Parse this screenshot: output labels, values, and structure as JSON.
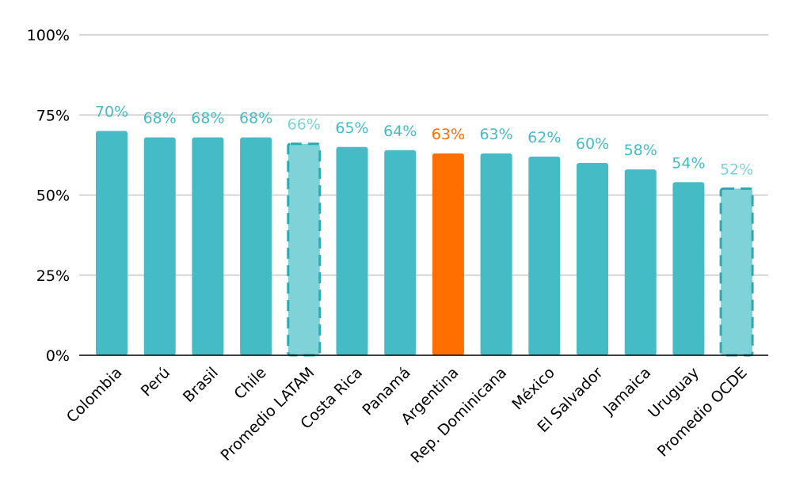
{
  "chart_data": {
    "type": "bar",
    "categories": [
      "Colombia",
      "Perú",
      "Brasil",
      "Chile",
      "Promedio LATAM",
      "Costa Rica",
      "Panamá",
      "Argentina",
      "Rep. Dominicana",
      "México",
      "El Salvador",
      "Jamaica",
      "Uruguay",
      "Promedio OCDE"
    ],
    "values": [
      70,
      68,
      68,
      68,
      66,
      65,
      64,
      63,
      63,
      62,
      60,
      58,
      54,
      52
    ],
    "data_labels": [
      "70%",
      "68%",
      "68%",
      "68%",
      "66%",
      "65%",
      "64%",
      "63%",
      "63%",
      "62%",
      "60%",
      "58%",
      "54%",
      "52%"
    ],
    "bar_styles": [
      "normal",
      "normal",
      "normal",
      "normal",
      "average",
      "normal",
      "normal",
      "highlight",
      "normal",
      "normal",
      "normal",
      "normal",
      "normal",
      "average"
    ],
    "ylim": [
      0,
      100
    ],
    "yticks": [
      0,
      25,
      50,
      75,
      100
    ],
    "ytick_labels": [
      "0%",
      "25%",
      "50%",
      "75%",
      "100%"
    ],
    "grid": true,
    "legend": "none",
    "colors": {
      "normal": "#45bcc5",
      "average": "#7fd2d8",
      "average_border": "#2aaab5",
      "highlight": "#ff6f00",
      "label_normal": "#45bcc5",
      "label_average": "#7fd2d8",
      "label_highlight": "#ff6f00",
      "grid": "#c8c8c8",
      "axis": "#000000"
    }
  }
}
